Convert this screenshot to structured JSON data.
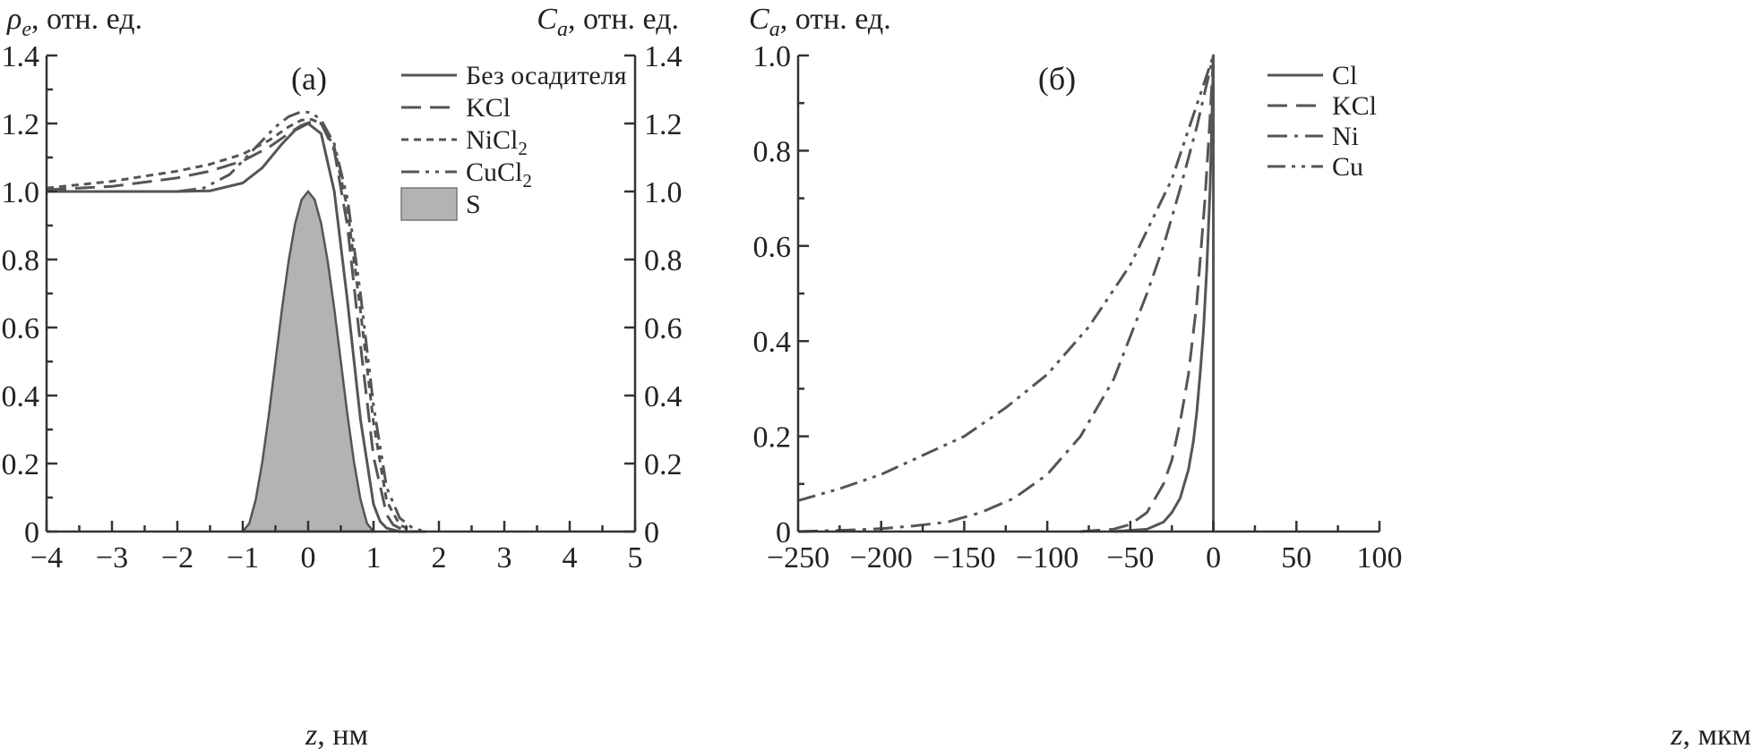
{
  "chart_data": [
    {
      "type": "line",
      "panel_label": "(а)",
      "left_axis_title": {
        "var": "ρ",
        "sub": "e",
        "rest": ", отн. ед."
      },
      "right_axis_title": {
        "var": "C",
        "sub": "a",
        "rest": ", отн. ед."
      },
      "x_axis_title": {
        "var": "z",
        "rest": ", нм"
      },
      "xlim": [
        -4,
        5
      ],
      "ylim": [
        0,
        1.4
      ],
      "x_ticks": [
        -4,
        -3,
        -2,
        -1,
        0,
        1,
        2,
        3,
        4,
        5
      ],
      "x_tick_labels": [
        "−4",
        "−3",
        "−2",
        "−1",
        "0",
        "1",
        "2",
        "3",
        "4",
        "5"
      ],
      "y_ticks": [
        0,
        0.2,
        0.4,
        0.6,
        0.8,
        1.0,
        1.2,
        1.4
      ],
      "y_tick_labels": [
        "0",
        "0.2",
        "0.4",
        "0.6",
        "0.8",
        "1.0",
        "1.2",
        "1.4"
      ],
      "legend_position": "top-right",
      "series": [
        {
          "name": "Без осадителя",
          "style": "solid",
          "color": "#555555",
          "x": [
            -4,
            -3,
            -2,
            -1.5,
            -1,
            -0.7,
            -0.4,
            -0.2,
            0,
            0.2,
            0.4,
            0.6,
            0.8,
            1.0,
            1.1,
            1.2,
            1.4,
            1.6
          ],
          "y": [
            1.0,
            1.0,
            1.0,
            1.002,
            1.025,
            1.07,
            1.14,
            1.18,
            1.2,
            1.17,
            1.0,
            0.68,
            0.33,
            0.08,
            0.03,
            0.01,
            0.0,
            0.0
          ]
        },
        {
          "name": "KCl",
          "style": "dashed",
          "color": "#555555",
          "x": [
            -4,
            -3,
            -2,
            -1.5,
            -1,
            -0.6,
            -0.3,
            -0.1,
            0.05,
            0.2,
            0.4,
            0.6,
            0.8,
            1.0,
            1.2,
            1.3,
            1.5,
            1.8
          ],
          "y": [
            1.005,
            1.015,
            1.04,
            1.06,
            1.09,
            1.13,
            1.17,
            1.195,
            1.205,
            1.2,
            1.12,
            0.9,
            0.55,
            0.22,
            0.05,
            0.02,
            0.0,
            0.0
          ]
        },
        {
          "name": "NiCl",
          "name_sub": "2",
          "style": "dotted",
          "color": "#555555",
          "x": [
            -4,
            -3,
            -2,
            -1.5,
            -1,
            -0.6,
            -0.3,
            -0.1,
            0.05,
            0.2,
            0.4,
            0.6,
            0.8,
            1.0,
            1.2,
            1.4,
            1.6,
            1.8
          ],
          "y": [
            1.01,
            1.03,
            1.06,
            1.08,
            1.11,
            1.15,
            1.19,
            1.21,
            1.212,
            1.2,
            1.13,
            0.95,
            0.65,
            0.32,
            0.09,
            0.02,
            0.0,
            0.0
          ]
        },
        {
          "name": "CuCl",
          "name_sub": "2",
          "style": "dash-dot-dot",
          "color": "#555555",
          "x": [
            -4,
            -3,
            -2,
            -1.6,
            -1.2,
            -0.8,
            -0.5,
            -0.3,
            -0.1,
            0.05,
            0.2,
            0.4,
            0.6,
            0.8,
            1.0,
            1.2,
            1.4,
            1.6,
            1.8
          ],
          "y": [
            1.0,
            1.0,
            1.0,
            1.01,
            1.05,
            1.13,
            1.19,
            1.22,
            1.235,
            1.232,
            1.21,
            1.14,
            0.98,
            0.7,
            0.37,
            0.13,
            0.04,
            0.01,
            0.0
          ]
        },
        {
          "name": "S",
          "style": "fill",
          "color": "#b3b3b5",
          "x": [
            -1.0,
            -0.9,
            -0.8,
            -0.7,
            -0.6,
            -0.5,
            -0.4,
            -0.3,
            -0.2,
            -0.1,
            0,
            0.1,
            0.2,
            0.3,
            0.4,
            0.5,
            0.6,
            0.7,
            0.8,
            0.9,
            1.0
          ],
          "y": [
            0.0,
            0.024,
            0.095,
            0.206,
            0.345,
            0.5,
            0.655,
            0.794,
            0.905,
            0.976,
            1.0,
            0.976,
            0.905,
            0.794,
            0.655,
            0.5,
            0.345,
            0.206,
            0.095,
            0.024,
            0.0
          ]
        }
      ]
    },
    {
      "type": "line",
      "panel_label": "(б)",
      "left_axis_title": {
        "var": "C",
        "sub": "a",
        "rest": ", отн. ед."
      },
      "x_axis_title": {
        "var": "z",
        "rest": ", мкм"
      },
      "xlim": [
        -250,
        100
      ],
      "ylim": [
        0,
        1.0
      ],
      "x_ticks": [
        -250,
        -200,
        -150,
        -100,
        -50,
        0,
        50,
        100
      ],
      "x_tick_labels": [
        "−250",
        "−200",
        "−150",
        "−100",
        "−50",
        "0",
        "50",
        "100"
      ],
      "y_ticks": [
        0,
        0.2,
        0.4,
        0.6,
        0.8,
        1.0
      ],
      "y_tick_labels": [
        "0",
        "0.2",
        "0.4",
        "0.6",
        "0.8",
        "1.0"
      ],
      "legend_position": "top-right",
      "series": [
        {
          "name": "Cl",
          "style": "solid",
          "color": "#555555",
          "x": [
            -60,
            -40,
            -30,
            -25,
            -20,
            -15,
            -12,
            -10,
            -8,
            -6,
            -4,
            -2,
            -1,
            0,
            0,
            0
          ],
          "y": [
            0.0,
            0.005,
            0.02,
            0.04,
            0.07,
            0.13,
            0.19,
            0.25,
            0.33,
            0.42,
            0.55,
            0.72,
            0.85,
            1.0,
            0.5,
            0.0
          ]
        },
        {
          "name": "KCl",
          "style": "dashed",
          "color": "#555555",
          "x": [
            -80,
            -60,
            -50,
            -40,
            -30,
            -25,
            -20,
            -15,
            -10,
            -5,
            -2,
            0
          ],
          "y": [
            0.0,
            0.005,
            0.015,
            0.04,
            0.1,
            0.15,
            0.23,
            0.33,
            0.48,
            0.7,
            0.87,
            1.0
          ]
        },
        {
          "name": "Ni",
          "style": "dash-dot",
          "color": "#555555",
          "x": [
            -250,
            -220,
            -200,
            -180,
            -160,
            -140,
            -120,
            -100,
            -80,
            -60,
            -40,
            -30,
            -20,
            -10,
            0
          ],
          "y": [
            0.0,
            0.003,
            0.006,
            0.012,
            0.02,
            0.04,
            0.07,
            0.12,
            0.2,
            0.32,
            0.5,
            0.6,
            0.72,
            0.85,
            1.0
          ]
        },
        {
          "name": "Cu",
          "style": "dash-dot-dot",
          "color": "#555555",
          "x": [
            -250,
            -225,
            -200,
            -175,
            -150,
            -125,
            -100,
            -75,
            -50,
            -25,
            0
          ],
          "y": [
            0.065,
            0.09,
            0.12,
            0.16,
            0.2,
            0.26,
            0.33,
            0.43,
            0.56,
            0.74,
            1.0
          ]
        }
      ]
    }
  ]
}
